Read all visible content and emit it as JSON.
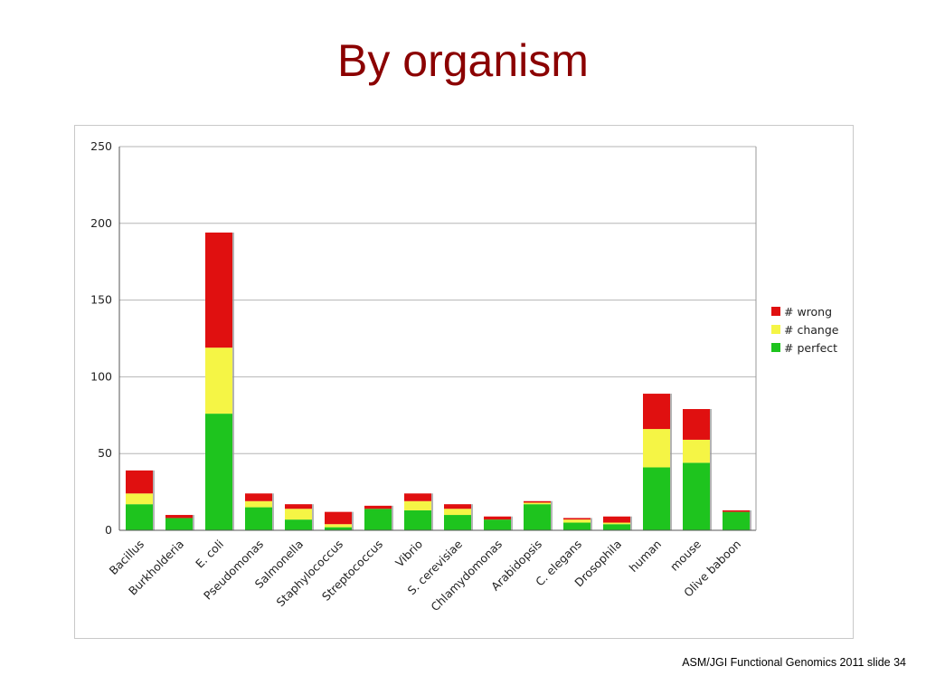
{
  "slide": {
    "title": "By organism",
    "footer": "ASM/JGI Functional Genomics 2011 slide 34"
  },
  "chart_data": {
    "type": "bar",
    "stacked": true,
    "categories": [
      "Bacillus",
      "Burkholderia",
      "E. coli",
      "Pseudomonas",
      "Salmonella",
      "Staphylococcus",
      "Streptococcus",
      "Vibrio",
      "S. cerevisiae",
      "Chlamydomonas",
      "Arabidopsis",
      "C. elegans",
      "Drosophila",
      "human",
      "mouse",
      "Olive baboon"
    ],
    "series": [
      {
        "name": "# perfect",
        "color": "#1ec41e",
        "values": [
          17,
          8,
          76,
          15,
          7,
          2,
          14,
          13,
          10,
          7,
          17,
          5,
          4,
          41,
          44,
          12
        ]
      },
      {
        "name": "# change",
        "color": "#f5f545",
        "values": [
          7,
          0,
          43,
          4,
          7,
          2,
          0,
          6,
          4,
          0,
          1,
          2,
          1,
          25,
          15,
          0
        ]
      },
      {
        "name": "# wrong",
        "color": "#e01010",
        "values": [
          15,
          2,
          75,
          5,
          3,
          8,
          2,
          5,
          3,
          2,
          1,
          1,
          4,
          23,
          20,
          1
        ]
      }
    ],
    "ylim": [
      0,
      250
    ],
    "yticks": [
      0,
      50,
      100,
      150,
      200,
      250
    ],
    "xlabel": "",
    "ylabel": "",
    "grid": true,
    "legend_position": "right"
  }
}
